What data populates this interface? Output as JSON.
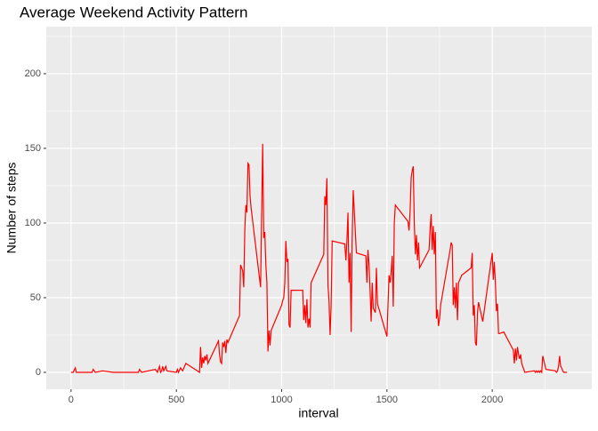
{
  "chart_data": {
    "type": "line",
    "title": "Average Weekend Activity Pattern",
    "x_label": "interval",
    "y_label": "Number of steps",
    "x": [
      0,
      10,
      20,
      25,
      60,
      100,
      105,
      115,
      150,
      200,
      300,
      320,
      325,
      335,
      400,
      410,
      420,
      425,
      430,
      435,
      440,
      450,
      455,
      500,
      505,
      510,
      520,
      530,
      545,
      600,
      610,
      615,
      620,
      625,
      630,
      635,
      640,
      645,
      650,
      700,
      705,
      710,
      715,
      720,
      725,
      730,
      735,
      740,
      745,
      800,
      805,
      815,
      820,
      825,
      830,
      835,
      840,
      845,
      850,
      855,
      900,
      905,
      910,
      915,
      920,
      925,
      930,
      935,
      940,
      945,
      950,
      1000,
      1005,
      1010,
      1015,
      1020,
      1025,
      1030,
      1035,
      1040,
      1045,
      1100,
      1105,
      1110,
      1115,
      1120,
      1125,
      1130,
      1135,
      1140,
      1200,
      1205,
      1210,
      1215,
      1220,
      1225,
      1230,
      1235,
      1240,
      1300,
      1305,
      1310,
      1315,
      1320,
      1325,
      1330,
      1335,
      1340,
      1355,
      1400,
      1405,
      1410,
      1415,
      1420,
      1425,
      1430,
      1435,
      1445,
      1450,
      1455,
      1500,
      1505,
      1510,
      1515,
      1520,
      1525,
      1530,
      1535,
      1540,
      1600,
      1605,
      1610,
      1615,
      1620,
      1625,
      1630,
      1635,
      1640,
      1645,
      1650,
      1655,
      1700,
      1705,
      1710,
      1715,
      1720,
      1725,
      1730,
      1735,
      1740,
      1745,
      1750,
      1755,
      1800,
      1805,
      1810,
      1815,
      1820,
      1825,
      1830,
      1835,
      1840,
      1855,
      1900,
      1905,
      1910,
      1915,
      1920,
      1925,
      1930,
      1935,
      1955,
      2000,
      2005,
      2010,
      2015,
      2020,
      2025,
      2030,
      2035,
      2055,
      2100,
      2105,
      2110,
      2115,
      2120,
      2125,
      2130,
      2135,
      2140,
      2155,
      2200,
      2205,
      2210,
      2215,
      2220,
      2225,
      2230,
      2235,
      2240,
      2255,
      2300,
      2305,
      2310,
      2315,
      2320,
      2325,
      2330,
      2335,
      2340,
      2355
    ],
    "series": [
      {
        "name": "steps",
        "color": "#ff0000",
        "values": [
          0,
          0,
          3,
          0,
          0,
          0,
          2,
          0,
          1,
          0,
          0,
          0,
          2,
          0,
          2,
          0,
          4,
          0,
          1,
          4,
          1,
          4,
          1,
          0,
          2,
          0,
          3,
          1,
          6,
          1,
          0,
          17,
          3,
          10,
          6,
          11,
          8,
          12,
          6,
          21,
          12,
          7,
          6,
          20,
          17,
          21,
          13,
          22,
          20,
          38,
          72,
          68,
          57,
          95,
          112,
          107,
          140,
          139,
          118,
          110,
          57,
          105,
          153,
          90,
          94,
          72,
          60,
          14,
          28,
          18,
          28,
          45,
          48,
          50,
          60,
          88,
          74,
          76,
          32,
          30,
          55,
          55,
          35,
          45,
          33,
          49,
          30,
          36,
          30,
          60,
          79,
          118,
          112,
          130,
          58,
          48,
          25,
          45,
          88,
          86,
          75,
          88,
          107,
          60,
          80,
          27,
          90,
          122,
          80,
          78,
          60,
          82,
          72,
          55,
          34,
          60,
          43,
          40,
          70,
          46,
          24,
          45,
          65,
          60,
          67,
          78,
          44,
          100,
          112,
          101,
          95,
          108,
          130,
          135,
          138,
          100,
          79,
          92,
          75,
          87,
          70,
          82,
          96,
          106,
          82,
          98,
          79,
          94,
          36,
          42,
          31,
          36,
          45,
          82,
          87,
          85,
          45,
          57,
          43,
          60,
          35,
          60,
          65,
          70,
          80,
          38,
          45,
          20,
          18,
          40,
          47,
          34,
          80,
          62,
          74,
          60,
          41,
          46,
          26,
          26,
          27,
          15,
          6,
          16,
          8,
          17,
          12,
          9,
          12,
          6,
          0,
          1,
          0,
          1,
          0,
          1,
          0,
          1,
          0,
          11,
          2,
          1,
          0,
          1,
          4,
          11,
          4,
          3,
          1,
          0,
          0
        ]
      }
    ],
    "xlim": [
      -117.75,
      2472.75
    ],
    "ylim": [
      -11.3,
      231.5
    ],
    "xticks": [
      0,
      500,
      1000,
      1500,
      2000
    ],
    "yticks": [
      0,
      50,
      100,
      150,
      200
    ],
    "x_minor_ticks": [
      250,
      750,
      1250,
      1750,
      2250
    ],
    "y_minor_ticks": [
      25,
      75,
      125,
      175,
      225
    ],
    "grid": true
  }
}
